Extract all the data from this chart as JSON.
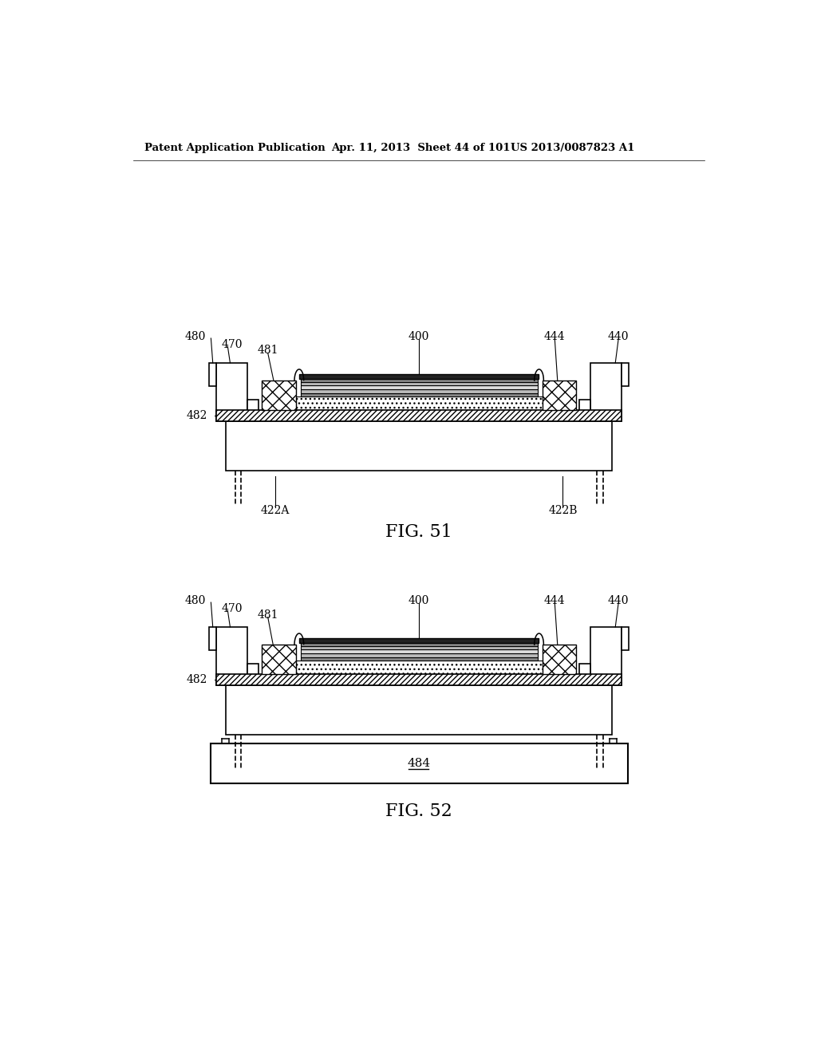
{
  "header_left": "Patent Application Publication",
  "header_mid": "Apr. 11, 2013  Sheet 44 of 101",
  "header_right": "US 2013/0087823 A1",
  "fig1_label": "FIG. 51",
  "fig2_label": "FIG. 52",
  "bg_color": "#ffffff",
  "line_color": "#000000"
}
